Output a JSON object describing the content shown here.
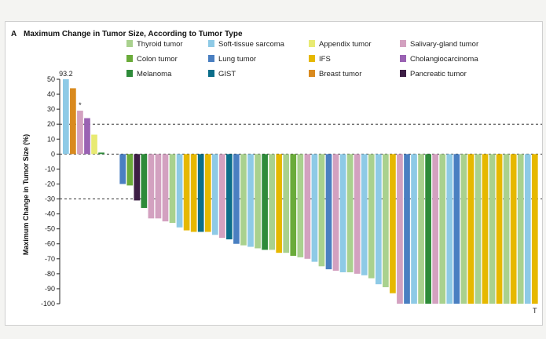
{
  "chart_data": {
    "type": "bar",
    "panel_label": "A",
    "title": "Maximum Change in Tumor Size, According to Tumor Type",
    "xlabel": "",
    "ylabel": "Maximum Change in Tumor Size (%)",
    "ylim": [
      -100,
      50
    ],
    "yticks": [
      50,
      40,
      30,
      20,
      10,
      0,
      -10,
      -20,
      -30,
      -40,
      -50,
      -60,
      -70,
      -80,
      -90,
      -100
    ],
    "reference_lines": [
      20,
      -30
    ],
    "grid": false,
    "legend_position": "top",
    "annotations": [
      {
        "text": "93.2",
        "bar_index": 0
      },
      {
        "text": "*",
        "bar_index": 2
      },
      {
        "text": "T",
        "bar_index": 66
      }
    ],
    "legend": [
      {
        "name": "Thyroid tumor",
        "color": "#a9d18e"
      },
      {
        "name": "Soft-tissue sarcoma",
        "color": "#8ecae6"
      },
      {
        "name": "Appendix tumor",
        "color": "#e8ea73"
      },
      {
        "name": "Salivary-gland tumor",
        "color": "#d3a1c0"
      },
      {
        "name": "Colon tumor",
        "color": "#6aab3a"
      },
      {
        "name": "Lung tumor",
        "color": "#4a7fc1"
      },
      {
        "name": "IFS",
        "color": "#e6b800"
      },
      {
        "name": "Cholangiocarcinoma",
        "color": "#9a62b3"
      },
      {
        "name": "Melanoma",
        "color": "#2e8b3a"
      },
      {
        "name": "GIST",
        "color": "#0b6e8a"
      },
      {
        "name": "Breast tumor",
        "color": "#d98a1e"
      },
      {
        "name": "Pancreatic tumor",
        "color": "#3d1e45"
      }
    ],
    "bars": [
      {
        "value": 50,
        "type": "Soft-tissue sarcoma"
      },
      {
        "value": 44,
        "type": "Breast tumor"
      },
      {
        "value": 29,
        "type": "Salivary-gland tumor"
      },
      {
        "value": 24,
        "type": "Cholangiocarcinoma"
      },
      {
        "value": 13,
        "type": "Appendix tumor"
      },
      {
        "value": 1,
        "type": "Melanoma"
      },
      {
        "value": 0,
        "type": "Thyroid tumor"
      },
      {
        "value": 0,
        "type": "Thyroid tumor"
      },
      {
        "value": -20,
        "type": "Lung tumor"
      },
      {
        "value": -21,
        "type": "Colon tumor"
      },
      {
        "value": -31,
        "type": "Pancreatic tumor"
      },
      {
        "value": -36,
        "type": "Melanoma"
      },
      {
        "value": -43,
        "type": "Salivary-gland tumor"
      },
      {
        "value": -43,
        "type": "Salivary-gland tumor"
      },
      {
        "value": -45,
        "type": "Salivary-gland tumor"
      },
      {
        "value": -46,
        "type": "Thyroid tumor"
      },
      {
        "value": -49,
        "type": "Soft-tissue sarcoma"
      },
      {
        "value": -51,
        "type": "IFS"
      },
      {
        "value": -52,
        "type": "IFS"
      },
      {
        "value": -52,
        "type": "GIST"
      },
      {
        "value": -52,
        "type": "IFS"
      },
      {
        "value": -54,
        "type": "Soft-tissue sarcoma"
      },
      {
        "value": -56,
        "type": "Salivary-gland tumor"
      },
      {
        "value": -57,
        "type": "GIST"
      },
      {
        "value": -60,
        "type": "Lung tumor"
      },
      {
        "value": -61,
        "type": "Thyroid tumor"
      },
      {
        "value": -62,
        "type": "Soft-tissue sarcoma"
      },
      {
        "value": -63,
        "type": "Thyroid tumor"
      },
      {
        "value": -64,
        "type": "Melanoma"
      },
      {
        "value": -64,
        "type": "Thyroid tumor"
      },
      {
        "value": -66,
        "type": "IFS"
      },
      {
        "value": -66,
        "type": "Thyroid tumor"
      },
      {
        "value": -68,
        "type": "Colon tumor"
      },
      {
        "value": -69,
        "type": "Thyroid tumor"
      },
      {
        "value": -70,
        "type": "Salivary-gland tumor"
      },
      {
        "value": -72,
        "type": "Soft-tissue sarcoma"
      },
      {
        "value": -75,
        "type": "Thyroid tumor"
      },
      {
        "value": -77,
        "type": "Lung tumor"
      },
      {
        "value": -78,
        "type": "Salivary-gland tumor"
      },
      {
        "value": -79,
        "type": "Soft-tissue sarcoma"
      },
      {
        "value": -79,
        "type": "Thyroid tumor"
      },
      {
        "value": -80,
        "type": "Salivary-gland tumor"
      },
      {
        "value": -81,
        "type": "Soft-tissue sarcoma"
      },
      {
        "value": -83,
        "type": "Thyroid tumor"
      },
      {
        "value": -87,
        "type": "Soft-tissue sarcoma"
      },
      {
        "value": -89,
        "type": "Thyroid tumor"
      },
      {
        "value": -93,
        "type": "IFS"
      },
      {
        "value": -100,
        "type": "Salivary-gland tumor"
      },
      {
        "value": -100,
        "type": "Lung tumor"
      },
      {
        "value": -100,
        "type": "Soft-tissue sarcoma"
      },
      {
        "value": -100,
        "type": "Thyroid tumor"
      },
      {
        "value": -100,
        "type": "Melanoma"
      },
      {
        "value": -100,
        "type": "Salivary-gland tumor"
      },
      {
        "value": -100,
        "type": "Thyroid tumor"
      },
      {
        "value": -100,
        "type": "Soft-tissue sarcoma"
      },
      {
        "value": -100,
        "type": "Lung tumor"
      },
      {
        "value": -100,
        "type": "Thyroid tumor"
      },
      {
        "value": -100,
        "type": "IFS"
      },
      {
        "value": -100,
        "type": "Thyroid tumor"
      },
      {
        "value": -100,
        "type": "IFS"
      },
      {
        "value": -100,
        "type": "Thyroid tumor"
      },
      {
        "value": -100,
        "type": "IFS"
      },
      {
        "value": -100,
        "type": "Thyroid tumor"
      },
      {
        "value": -100,
        "type": "IFS"
      },
      {
        "value": -100,
        "type": "Thyroid tumor"
      },
      {
        "value": -100,
        "type": "Soft-tissue sarcoma"
      },
      {
        "value": -100,
        "type": "IFS"
      }
    ]
  }
}
